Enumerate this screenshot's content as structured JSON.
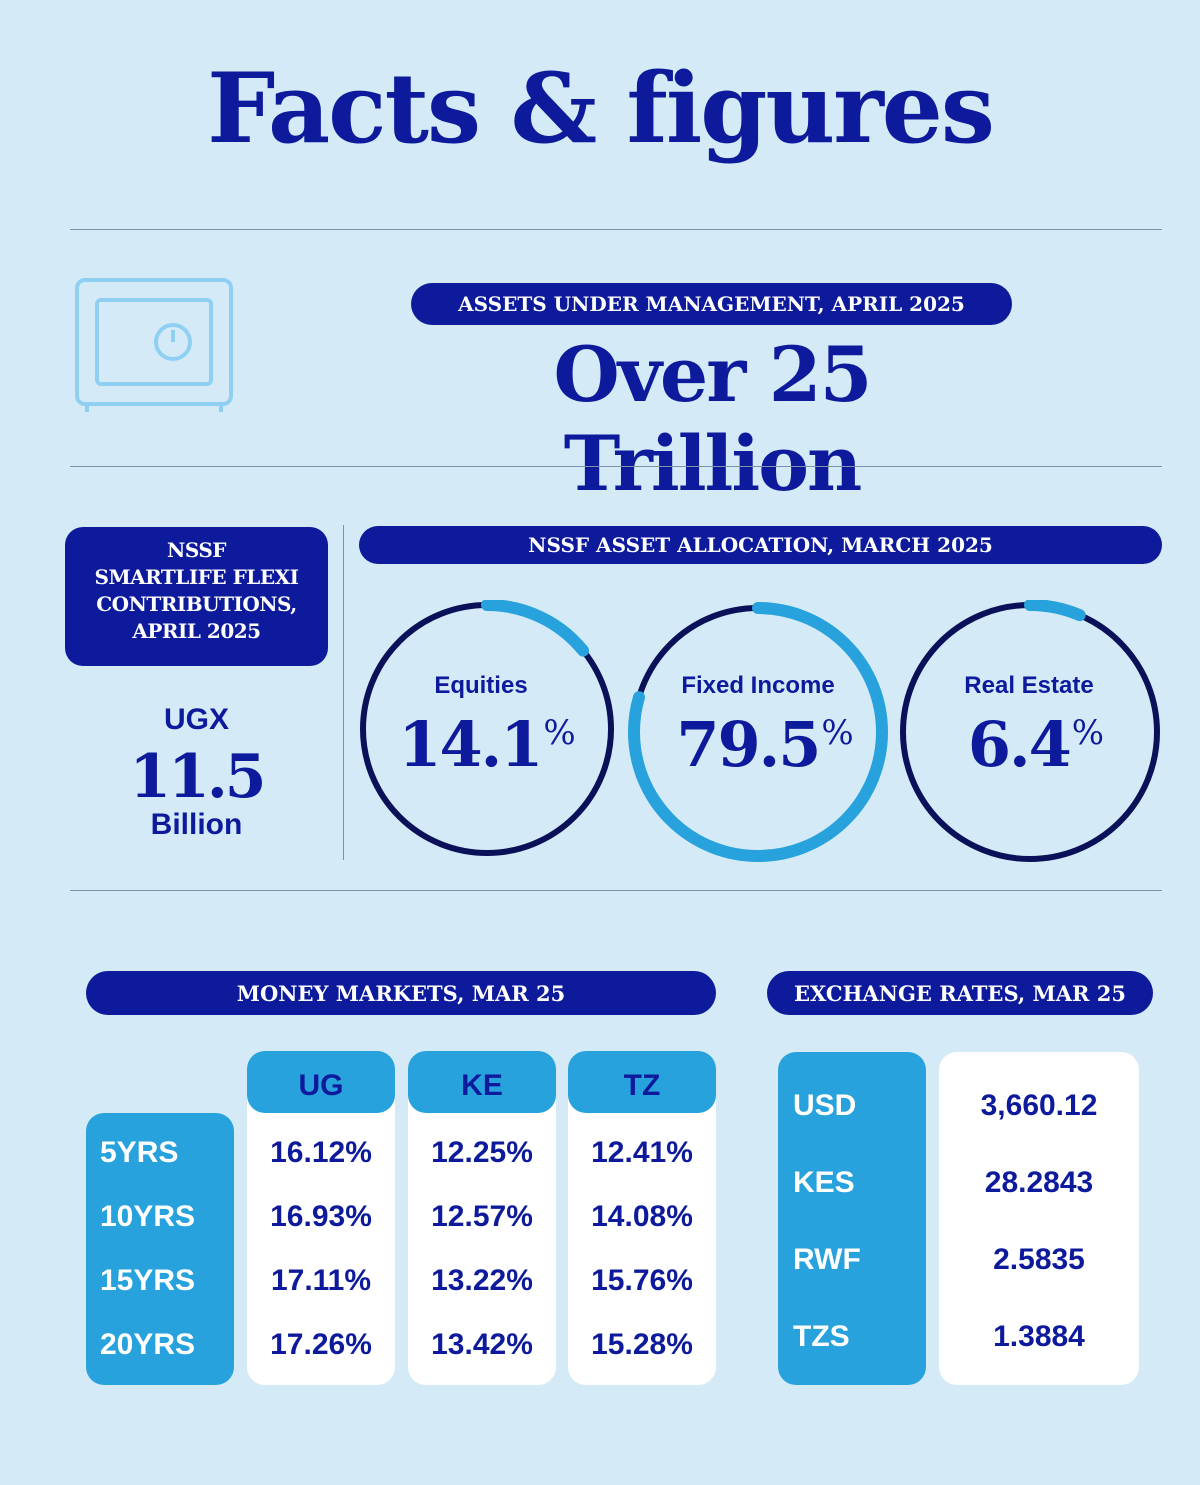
{
  "title": "Facts & figures",
  "aum": {
    "label": "ASSETS UNDER MANAGEMENT, APRIL 2025",
    "value": "Over 25 Trillion",
    "icon": "safe-icon"
  },
  "contributions": {
    "label_lines": [
      "NSSF",
      "SMARTLIFE FLEXI",
      "CONTRIBUTIONS,",
      "APRIL 2025"
    ],
    "currency": "UGX",
    "value": "11.5",
    "unit": "Billion"
  },
  "allocation": {
    "label": "NSSF ASSET ALLOCATION, MARCH 2025",
    "percent_sign": "%",
    "items": [
      {
        "name": "Equities",
        "value": "14.1",
        "fraction": 0.141
      },
      {
        "name": "Fixed Income",
        "value": "79.5",
        "fraction": 0.795
      },
      {
        "name": "Real Estate",
        "value": "6.4",
        "fraction": 0.064
      }
    ],
    "colors": {
      "track": "#0b1159",
      "fill": "#27a2dd"
    }
  },
  "money_markets": {
    "label": "MONEY MARKETS, MAR 25",
    "columns": [
      "UG",
      "KE",
      "TZ"
    ],
    "rows": [
      {
        "term": "5YRS",
        "values": [
          "16.12%",
          "12.25%",
          "12.41%"
        ]
      },
      {
        "term": "10YRS",
        "values": [
          "16.93%",
          "12.57%",
          "14.08%"
        ]
      },
      {
        "term": "15YRS",
        "values": [
          "17.11%",
          "13.22%",
          "15.76%"
        ]
      },
      {
        "term": "20YRS",
        "values": [
          "17.26%",
          "13.42%",
          "15.28%"
        ]
      }
    ]
  },
  "exchange_rates": {
    "label": "EXCHANGE RATES, MAR 25",
    "rows": [
      {
        "currency": "USD",
        "rate": "3,660.12"
      },
      {
        "currency": "KES",
        "rate": "28.2843"
      },
      {
        "currency": "RWF",
        "rate": "2.5835"
      },
      {
        "currency": "TZS",
        "rate": "1.3884"
      }
    ]
  },
  "colors": {
    "background": "#d4ebf7",
    "navy": "#0d1a9c",
    "accent": "#27a2dd",
    "icon": "#8fd0f2"
  }
}
